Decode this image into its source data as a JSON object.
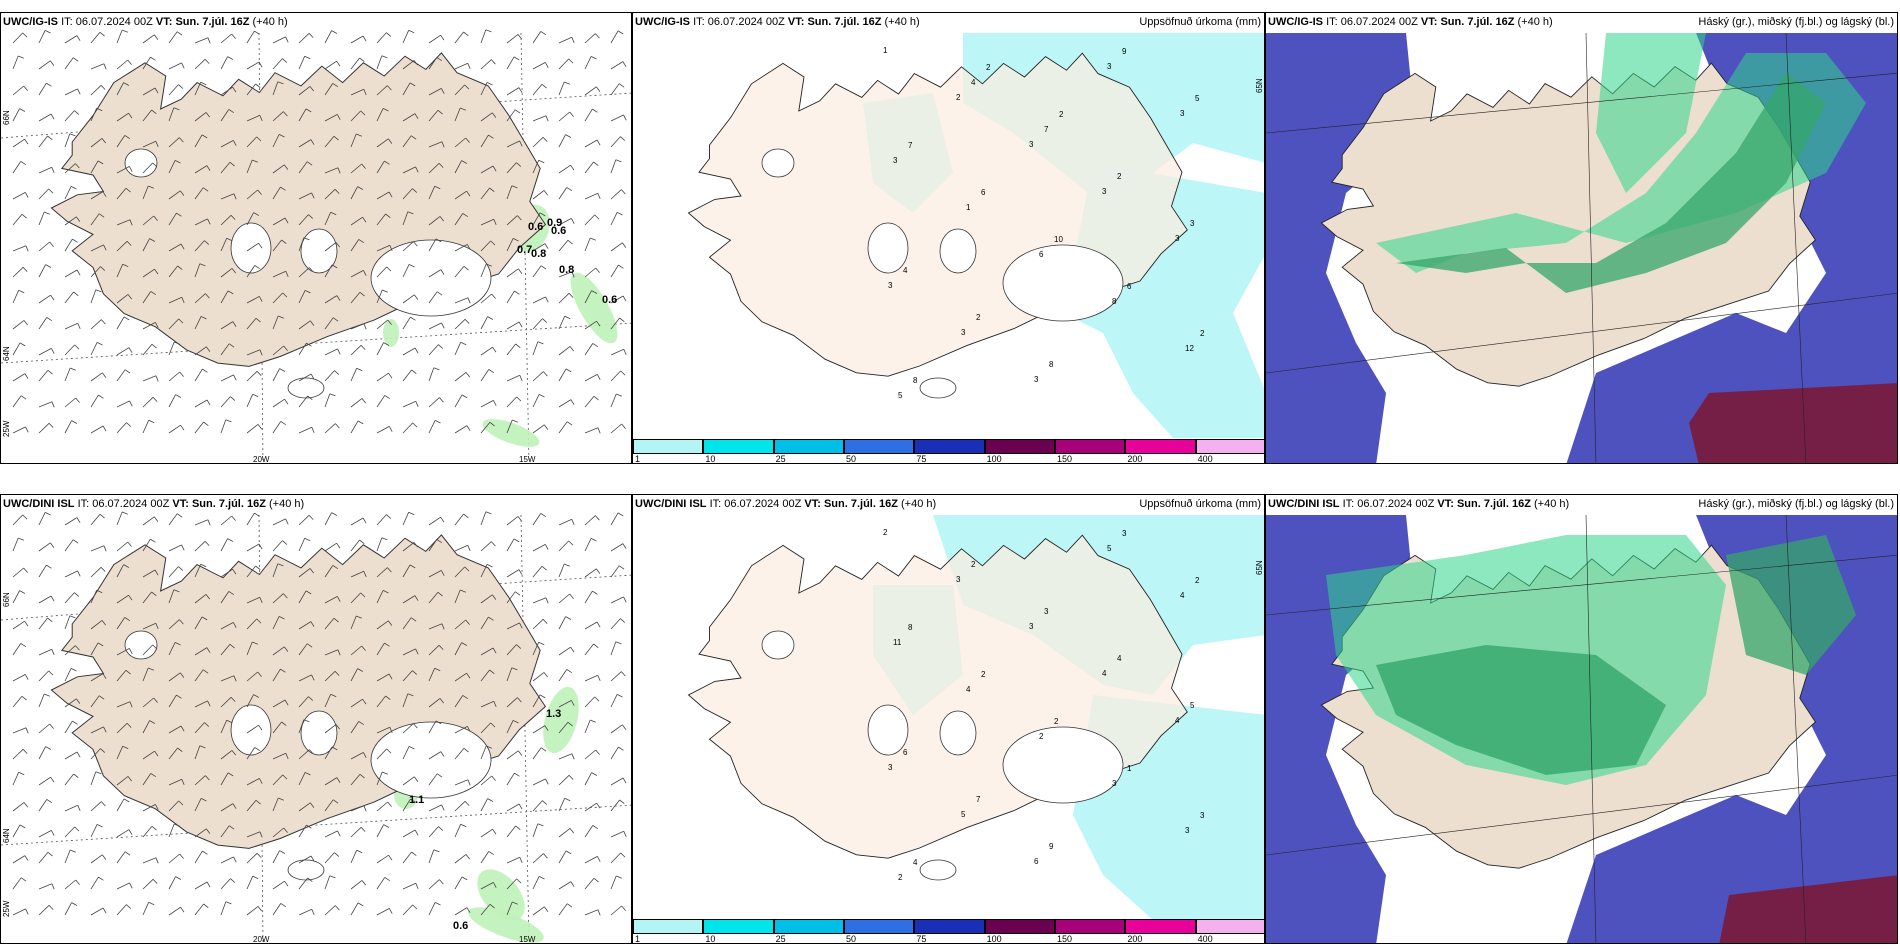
{
  "panels": [
    {
      "id": "tl",
      "model": "UWC/IG-IS",
      "it_label": "IT:",
      "it_value": "06.07.2024 00Z",
      "vt_label": "VT: Sun. 7.júl. 16Z",
      "lead": "(+40 h)",
      "right_title": "",
      "type": "wind"
    },
    {
      "id": "tm",
      "model": "UWC/IG-IS",
      "it_label": "IT:",
      "it_value": "06.07.2024 00Z",
      "vt_label": "VT: Sun. 7.júl. 16Z",
      "lead": "(+40 h)",
      "right_title": "Uppsöfnuð úrkoma (mm)",
      "type": "precip"
    },
    {
      "id": "tr",
      "model": "UWC/IG-IS",
      "it_label": "IT:",
      "it_value": "06.07.2024 00Z",
      "vt_label": "VT: Sun. 7.júl. 16Z",
      "lead": "(+40 h)",
      "right_title": "Háský (gr.), miðský (fj.bl.) og lágský (bl.)",
      "type": "cloud"
    },
    {
      "id": "bl",
      "model": "UWC/DINI ISL",
      "it_label": "IT:",
      "it_value": "06.07.2024 00Z",
      "vt_label": "VT: Sun. 7.júl. 16Z",
      "lead": "(+40 h)",
      "right_title": "",
      "type": "wind"
    },
    {
      "id": "bm",
      "model": "UWC/DINI ISL",
      "it_label": "IT:",
      "it_value": "06.07.2024 00Z",
      "vt_label": "VT: Sun. 7.júl. 16Z",
      "lead": "(+40 h)",
      "right_title": "Uppsöfnuð úrkoma (mm)",
      "type": "precip"
    },
    {
      "id": "br",
      "model": "UWC/DINI ISL",
      "it_label": "IT:",
      "it_value": "06.07.2024 00Z",
      "vt_label": "VT: Sun. 7.júl. 16Z",
      "lead": "(+40 h)",
      "right_title": "Háský (gr.), miðský (fj.bl.) og lágský (bl.)",
      "type": "cloud"
    }
  ],
  "wind_axis_labels": {
    "lat66": "66N",
    "lat64": "64N",
    "lon25": "25W",
    "lon20": "20W",
    "lon15": "15W"
  },
  "precip_axis_label": "65N",
  "wind_values_top": [
    "0.6",
    "0.9",
    "0.6",
    "0.7",
    "0.8",
    "0.8",
    "0.6"
  ],
  "wind_values_bottom": [
    "1.3",
    "1.1",
    "0.6"
  ],
  "precip_colorbar": {
    "labels": [
      "1",
      "10",
      "25",
      "50",
      "75",
      "100",
      "150",
      "200",
      "400"
    ],
    "colors": [
      "#b3f5f5",
      "#00e5ec",
      "#00bfe6",
      "#2f6fe6",
      "#1a2fb8",
      "#6b0050",
      "#a8007a",
      "#e8009a",
      "#f5b0f0"
    ]
  },
  "precip_values_top": [
    "1",
    "2",
    "3",
    "3",
    "3",
    "3",
    "3",
    "3",
    "3",
    "3",
    "3",
    "1",
    "6",
    "8",
    "12",
    "5",
    "4",
    "7",
    "2",
    "3",
    "4",
    "2",
    "8",
    "9",
    "5",
    "7",
    "6",
    "10",
    "6",
    "2",
    "8",
    "2",
    "2"
  ],
  "precip_values_bottom": [
    "2",
    "3",
    "3",
    "4",
    "4",
    "3",
    "5",
    "6",
    "5",
    "4",
    "11",
    "4",
    "2",
    "3",
    "3",
    "2",
    "2",
    "3",
    "4",
    "5",
    "6",
    "7",
    "9",
    "3",
    "2",
    "8",
    "2",
    "2",
    "1",
    "3",
    "4"
  ],
  "colors": {
    "land": "#ecdfd0",
    "land_precip": "#fbeee2",
    "sea": "#ffffff",
    "precip_light": "#b8f6f6",
    "cloud_high": "#35a66b",
    "cloud_green": "#2fd58c",
    "cloud_mid": "#3b3fb8",
    "cloud_low_dark": "#7a1a3a"
  }
}
